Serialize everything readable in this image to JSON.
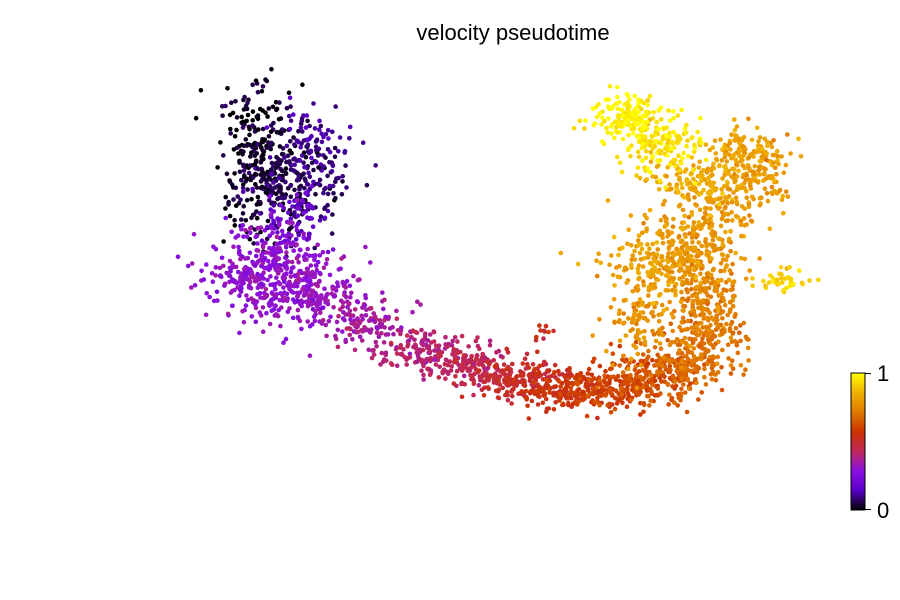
{
  "chart_data": {
    "type": "scatter",
    "title": "velocity pseudotime",
    "xlabel": "",
    "ylabel": "",
    "grid": false,
    "axes_visible": false,
    "colormap": "gnuplot",
    "colorbar": {
      "position": "right",
      "min": 0,
      "max": 1,
      "tick_labels": [
        "0",
        "1"
      ],
      "stops": [
        "#000000",
        "#5a00c8",
        "#8a10e0",
        "#c0285a",
        "#cc3300",
        "#e07a00",
        "#f0b000",
        "#ffff00"
      ]
    },
    "xlim": [
      0,
      100
    ],
    "ylim": [
      0,
      100
    ],
    "clusters": [
      {
        "x": 12,
        "y": 78,
        "sx": 3.0,
        "sy": 9.0,
        "n": 260,
        "t": 0.02
      },
      {
        "x": 17,
        "y": 73,
        "sx": 4.0,
        "sy": 6.0,
        "n": 200,
        "t": 0.06
      },
      {
        "x": 20,
        "y": 81,
        "sx": 2.5,
        "sy": 5.0,
        "n": 90,
        "t": 0.1
      },
      {
        "x": 18,
        "y": 64,
        "sx": 2.5,
        "sy": 4.0,
        "n": 70,
        "t": 0.2
      },
      {
        "x": 14,
        "y": 52,
        "sx": 5.0,
        "sy": 5.5,
        "n": 420,
        "t": 0.3
      },
      {
        "x": 21,
        "y": 46,
        "sx": 3.5,
        "sy": 3.5,
        "n": 120,
        "t": 0.32
      },
      {
        "x": 29,
        "y": 39,
        "sx": 3.0,
        "sy": 2.8,
        "n": 120,
        "t": 0.36
      },
      {
        "x": 37,
        "y": 33,
        "sx": 3.0,
        "sy": 2.5,
        "n": 130,
        "t": 0.4
      },
      {
        "x": 45,
        "y": 29,
        "sx": 3.0,
        "sy": 2.5,
        "n": 140,
        "t": 0.44
      },
      {
        "x": 52,
        "y": 26,
        "sx": 3.0,
        "sy": 2.6,
        "n": 160,
        "t": 0.5
      },
      {
        "x": 55,
        "y": 38,
        "sx": 0.8,
        "sy": 1.2,
        "n": 10,
        "t": 0.52
      },
      {
        "x": 59,
        "y": 24,
        "sx": 3.5,
        "sy": 2.6,
        "n": 180,
        "t": 0.56
      },
      {
        "x": 66,
        "y": 24,
        "sx": 3.5,
        "sy": 2.6,
        "n": 170,
        "t": 0.6
      },
      {
        "x": 73,
        "y": 27,
        "sx": 3.5,
        "sy": 3.0,
        "n": 160,
        "t": 0.64
      },
      {
        "x": 78,
        "y": 31,
        "sx": 3.5,
        "sy": 3.0,
        "n": 140,
        "t": 0.7
      },
      {
        "x": 80,
        "y": 38,
        "sx": 2.5,
        "sy": 4.0,
        "n": 120,
        "t": 0.72
      },
      {
        "x": 80,
        "y": 47,
        "sx": 2.5,
        "sy": 4.0,
        "n": 130,
        "t": 0.74
      },
      {
        "x": 70,
        "y": 40,
        "sx": 2.5,
        "sy": 5.0,
        "n": 100,
        "t": 0.78
      },
      {
        "x": 78,
        "y": 56,
        "sx": 3.5,
        "sy": 4.5,
        "n": 180,
        "t": 0.78
      },
      {
        "x": 72,
        "y": 54,
        "sx": 4.0,
        "sy": 5.0,
        "n": 160,
        "t": 0.82
      },
      {
        "x": 80,
        "y": 66,
        "sx": 3.5,
        "sy": 3.5,
        "n": 120,
        "t": 0.8
      },
      {
        "x": 78,
        "y": 74,
        "sx": 4.0,
        "sy": 2.5,
        "n": 100,
        "t": 0.84
      },
      {
        "x": 86,
        "y": 80,
        "sx": 3.0,
        "sy": 3.0,
        "n": 140,
        "t": 0.82
      },
      {
        "x": 88,
        "y": 73,
        "sx": 2.5,
        "sy": 4.0,
        "n": 80,
        "t": 0.8
      },
      {
        "x": 91,
        "y": 50,
        "sx": 2.5,
        "sy": 1.5,
        "n": 40,
        "t": 0.92
      },
      {
        "x": 73,
        "y": 82,
        "sx": 3.0,
        "sy": 3.5,
        "n": 140,
        "t": 0.95
      },
      {
        "x": 68,
        "y": 89,
        "sx": 2.5,
        "sy": 3.0,
        "n": 150,
        "t": 0.98
      }
    ]
  }
}
